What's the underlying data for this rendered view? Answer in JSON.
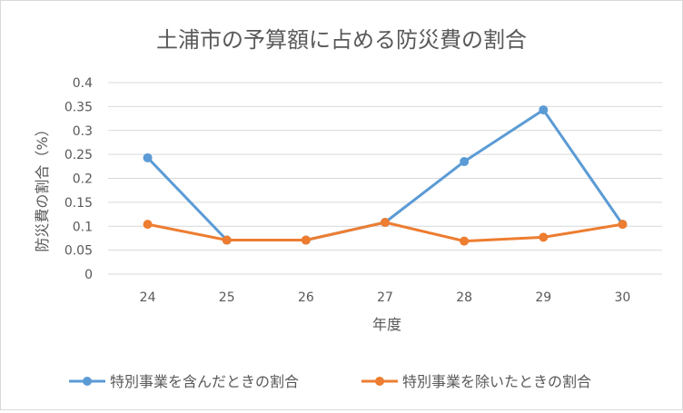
{
  "chart_data": {
    "type": "line",
    "title": "土浦市の予算額に占める防災費の割合",
    "xlabel": "年度",
    "ylabel": "防災費の割合（%）",
    "categories": [
      "24",
      "25",
      "26",
      "27",
      "28",
      "29",
      "30"
    ],
    "y_ticks": [
      "0",
      "0.05",
      "0.1",
      "0.15",
      "0.2",
      "0.25",
      "0.3",
      "0.35",
      "0.4"
    ],
    "ylim": [
      0,
      0.4
    ],
    "grid": true,
    "legend_position": "bottom",
    "series": [
      {
        "name": "特別事業を含んだときの割合",
        "color": "#5b9bd5",
        "values": [
          0.243,
          0.071,
          0.071,
          0.108,
          0.235,
          0.343,
          0.104
        ]
      },
      {
        "name": "特別事業を除いたときの割合",
        "color": "#ed7d31",
        "values": [
          0.104,
          0.071,
          0.071,
          0.108,
          0.069,
          0.077,
          0.104
        ]
      }
    ]
  }
}
